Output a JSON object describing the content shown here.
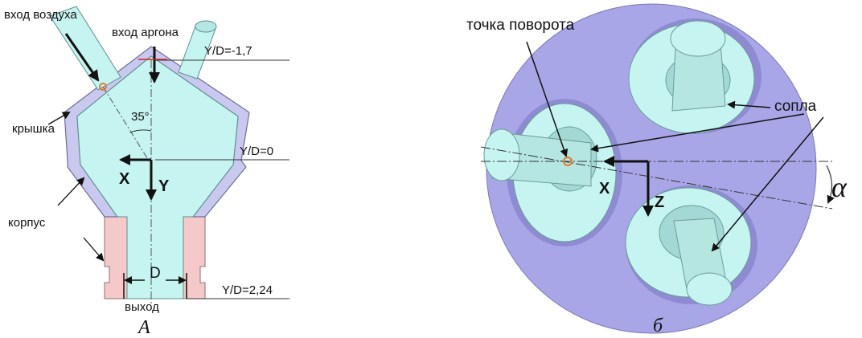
{
  "panel_a": {
    "caption": "А",
    "labels": {
      "air_inlet": "вход воздуха",
      "argon_inlet": "вход аргона",
      "lid": "крышка",
      "body": "корпус",
      "outlet": "выход",
      "angle": "35°",
      "diameter": "D",
      "level_top": "Y/D=-1,7",
      "level_zero": "Y/D=0",
      "level_bottom": "Y/D=2,24",
      "axis_x": "X",
      "axis_y": "Y"
    }
  },
  "panel_b": {
    "caption": "б",
    "labels": {
      "pivot_point": "точка поворота",
      "nozzles": "сопла",
      "axis_x": "X",
      "axis_z": "Z",
      "alpha": "α"
    }
  },
  "colors": {
    "fluid": "#c6f4f1",
    "lid_body": "#c9c9f0",
    "outlet_part": "#f5c9c9",
    "disk": "#a9a6e8",
    "nozzle": "#b5e6e2",
    "pivot_marker": "#e07a2a"
  }
}
